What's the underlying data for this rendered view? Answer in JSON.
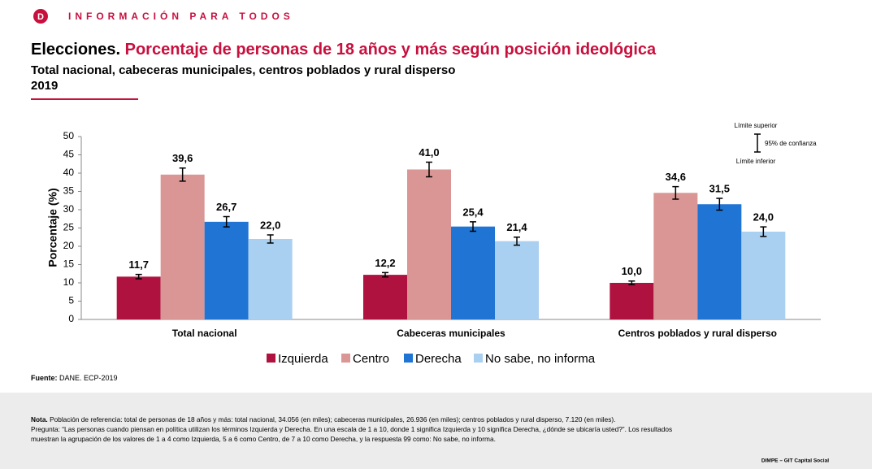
{
  "header": "INFORMACIÓN PARA TODOS",
  "chart_data": {
    "type": "bar",
    "title_lead": "Elecciones.",
    "title": "Porcentaje de personas de 18 años y más según posición ideológica",
    "subtitle": "Total nacional, cabeceras municipales, centros poblados y rural disperso",
    "year": "2019",
    "ylabel": "Porcentaje (%)",
    "categories": [
      "Total nacional",
      "Cabeceras municipales",
      "Centros poblados y rural disperso"
    ],
    "series": [
      {
        "name": "Izquierda",
        "color": "#b0123f",
        "values": [
          11.7,
          12.2,
          10.0
        ],
        "value_labels": [
          "11,7",
          "12,2",
          "10,0"
        ],
        "errors": [
          0.6,
          0.6,
          0.5
        ]
      },
      {
        "name": "Centro",
        "color": "#d99694",
        "values": [
          39.6,
          41.0,
          34.6
        ],
        "value_labels": [
          "39,6",
          "41,0",
          "34,6"
        ],
        "errors": [
          1.8,
          2.0,
          1.7
        ]
      },
      {
        "name": "Derecha",
        "color": "#1f74d4",
        "values": [
          26.7,
          25.4,
          31.5
        ],
        "value_labels": [
          "26,7",
          "25,4",
          "31,5"
        ],
        "errors": [
          1.4,
          1.3,
          1.6
        ]
      },
      {
        "name": "No sabe, no informa",
        "color": "#a9d0f0",
        "values": [
          22.0,
          21.4,
          24.0
        ],
        "value_labels": [
          "22,0",
          "21,4",
          "24,0"
        ],
        "errors": [
          1.1,
          1.1,
          1.3
        ]
      }
    ],
    "ylim": [
      0,
      50
    ],
    "yticks": [
      0,
      5,
      10,
      15,
      20,
      25,
      30,
      35,
      40,
      45,
      50
    ],
    "ci_legend": {
      "upper": "Límite superior",
      "level": "95% de confianza",
      "lower": "Límite inferior"
    }
  },
  "source": {
    "label": "Fuente:",
    "text": "DANE. ECP-2019"
  },
  "note": {
    "label": "Nota.",
    "lines": [
      "Población de referencia: total de personas de 18 años y más: total nacional, 34.056 (en miles); cabeceras municipales, 26.936 (en miles); centros poblados y rural disperso, 7.120 (en miles).",
      "Pregunta: “Las personas cuando piensan en política utilizan los términos Izquierda y Derecha. En una escala de 1 a 10, donde 1 significa Izquierda y 10 significa Derecha, ¿dónde se ubicaría usted?”. Los resultados",
      "muestran la agrupación de los valores de 1 a 4 como Izquierda, 5 a 6 como Centro, de 7 a 10 como Derecha, y la respuesta 99 como: No sabe, no informa."
    ]
  },
  "footer": "DIMPE – GIT Capital Social"
}
